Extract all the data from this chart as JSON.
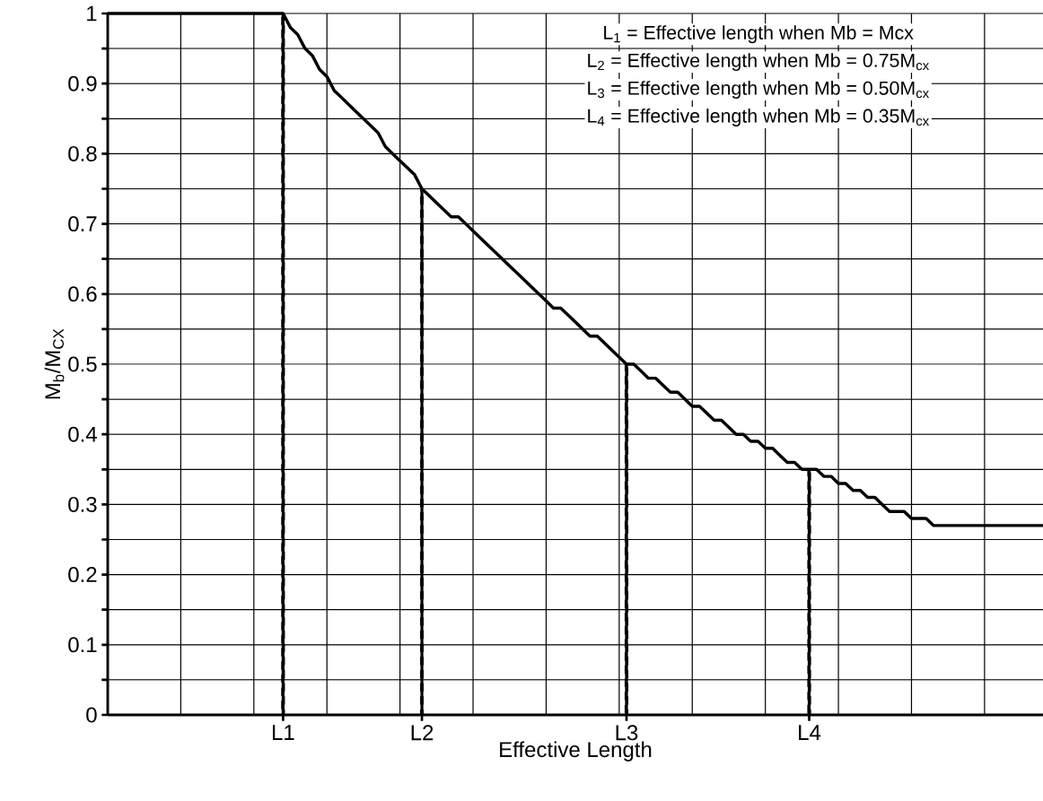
{
  "chart_data": {
    "type": "line",
    "xlabel": "Effective Length",
    "ylabel": "M$_{b}$/M$_{CX}$",
    "annotations": [
      "L$_{1}$ = Effective length when Mb = Mcx",
      "L$_{2}$ = Effective length when Mb = 0.75M$_{cx}$",
      "L$_{3}$ = Effective length when Mb = 0.50M$_{cx}$",
      "L$_{4}$ = Effective length when Mb = 0.35M$_{cx}$"
    ],
    "categories": [
      null,
      null,
      null,
      null,
      null,
      null,
      null,
      null,
      null,
      null,
      null,
      null,
      null,
      null,
      null,
      null,
      null,
      null,
      null,
      null,
      null,
      null,
      null,
      null,
      "L1",
      null,
      null,
      null,
      null,
      null,
      null,
      null,
      null,
      null,
      null,
      null,
      null,
      null,
      null,
      null,
      null,
      null,
      null,
      "L2",
      null,
      null,
      null,
      null,
      null,
      null,
      null,
      null,
      null,
      null,
      null,
      null,
      null,
      null,
      null,
      null,
      null,
      null,
      null,
      null,
      null,
      null,
      null,
      null,
      null,
      null,
      null,
      "L3",
      null,
      null,
      null,
      null,
      null,
      null,
      null,
      null,
      null,
      null,
      null,
      null,
      null,
      null,
      null,
      null,
      null,
      null,
      null,
      null,
      null,
      null,
      null,
      null,
      "L4",
      null,
      null,
      null,
      null,
      null,
      null,
      null,
      null,
      null,
      null,
      null,
      null,
      null,
      null,
      null,
      null,
      null,
      null,
      null,
      null,
      null,
      null,
      null,
      null,
      null,
      null,
      null,
      null,
      null,
      null,
      null,
      null
    ],
    "series": [
      {
        "color": "#000000",
        "values": [
          1,
          1,
          1,
          1,
          1,
          1,
          1,
          1,
          1,
          1,
          1,
          1,
          1,
          1,
          1,
          1,
          1,
          1,
          1,
          1,
          1,
          1,
          1,
          1,
          1,
          0.98,
          0.97,
          0.95,
          0.94,
          0.92,
          0.91,
          0.89,
          0.88,
          0.87,
          0.86,
          0.85,
          0.84,
          0.83,
          0.81,
          0.8,
          0.79,
          0.78,
          0.77,
          0.75,
          0.74,
          0.73,
          0.72,
          0.71,
          0.71,
          0.7,
          0.69,
          0.68,
          0.67,
          0.66,
          0.65,
          0.64,
          0.63,
          0.62,
          0.61,
          0.6,
          0.59,
          0.58,
          0.58,
          0.57,
          0.56,
          0.55,
          0.54,
          0.54,
          0.53,
          0.52,
          0.51,
          0.5,
          0.5,
          0.49,
          0.48,
          0.48,
          0.47,
          0.46,
          0.46,
          0.45,
          0.44,
          0.44,
          0.43,
          0.42,
          0.42,
          0.41,
          0.4,
          0.4,
          0.39,
          0.39,
          0.38,
          0.38,
          0.37,
          0.36,
          0.36,
          0.35,
          0.35,
          0.35,
          0.34,
          0.34,
          0.33,
          0.33,
          0.32,
          0.32,
          0.31,
          0.31,
          0.3,
          0.29,
          0.29,
          0.29,
          0.28,
          0.28,
          0.28,
          0.27,
          0.27,
          0.27,
          0.27,
          0.27,
          0.27,
          0.27,
          0.27,
          0.27,
          0.27,
          0.27,
          0.27,
          0.27,
          0.27,
          0.27,
          0.27
        ]
      },
      {
        "type": "bar",
        "line_style": "dashed",
        "color": "#000000",
        "values": [
          null,
          null,
          null,
          null,
          null,
          null,
          null,
          null,
          null,
          null,
          null,
          null,
          null,
          null,
          null,
          null,
          null,
          null,
          null,
          null,
          null,
          null,
          null,
          null,
          1,
          null,
          null,
          null,
          null,
          null,
          null,
          null,
          null,
          null,
          null,
          null,
          null,
          null,
          null,
          null,
          null,
          null,
          null,
          0.75,
          null,
          null,
          null,
          null,
          null,
          null,
          null,
          null,
          null,
          null,
          null,
          null,
          null,
          null,
          null,
          null,
          null,
          null,
          null,
          null,
          null,
          null,
          null,
          null,
          null,
          null,
          null,
          0.5,
          null,
          null,
          null,
          null,
          null,
          null,
          null,
          null,
          null,
          null,
          null,
          null,
          null,
          null,
          null,
          null,
          null,
          null,
          null,
          null,
          null,
          null,
          null,
          null,
          0.35,
          null,
          null,
          null,
          null,
          null,
          null,
          null,
          null,
          null,
          null,
          null,
          null,
          null,
          null,
          null,
          null,
          null,
          null,
          null,
          null,
          null,
          null,
          null,
          null,
          null,
          null,
          null,
          null,
          null,
          null,
          null,
          null
        ]
      }
    ],
    "ylim": [
      0,
      1
    ],
    "yticks": [
      0,
      {
        "value": 0.05,
        "label": null
      },
      0.1,
      {
        "value": 0.15,
        "label": null
      },
      0.2,
      {
        "value": 0.25,
        "label": null
      },
      0.3,
      {
        "value": 0.35,
        "label": null
      },
      0.4,
      {
        "value": 0.45,
        "label": null
      },
      0.5,
      {
        "value": 0.55,
        "label": null
      },
      0.6,
      {
        "value": 0.65,
        "label": null
      },
      0.7,
      {
        "value": 0.75,
        "label": null
      },
      0.8,
      {
        "value": 0.85,
        "label": null
      },
      0.9,
      {
        "value": 0.95,
        "label": null
      },
      1
    ],
    "grid": true
  }
}
